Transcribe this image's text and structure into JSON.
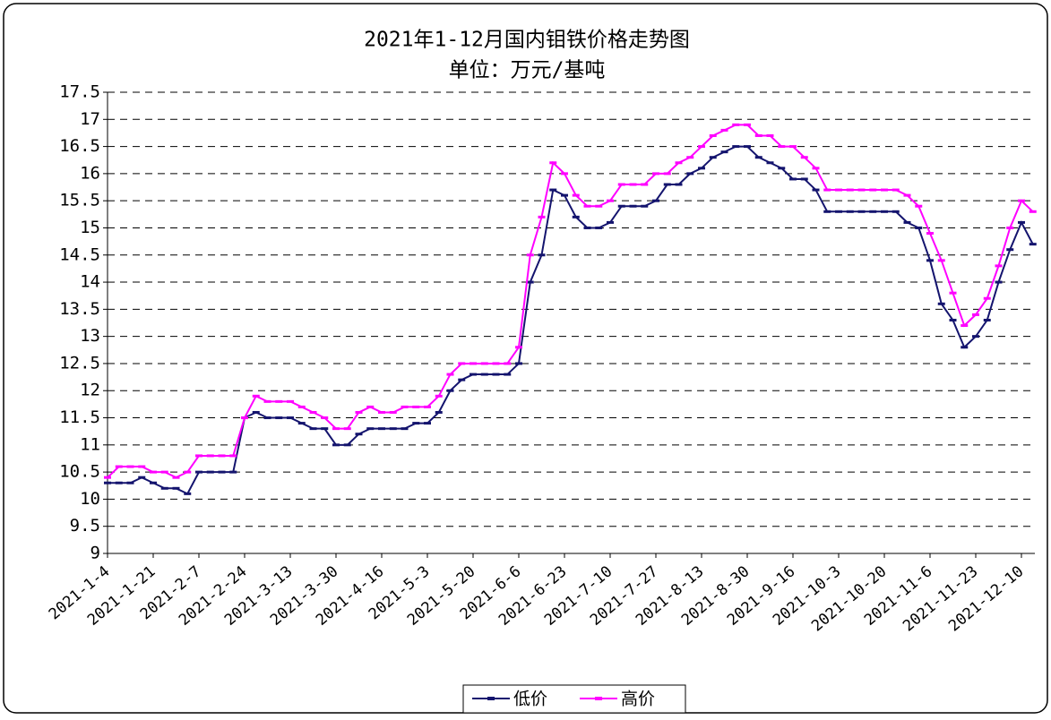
{
  "chart_data": {
    "type": "line",
    "title": "2021年1-12月国内钼铁价格走势图",
    "subtitle": "单位：万元/基吨",
    "categories": [
      "2021-1-4",
      null,
      null,
      null,
      "2021-1-21",
      null,
      null,
      null,
      "2021-2-7",
      null,
      null,
      null,
      "2021-2-24",
      null,
      null,
      null,
      "2021-3-13",
      null,
      null,
      null,
      "2021-3-30",
      null,
      null,
      null,
      "2021-4-16",
      null,
      null,
      null,
      "2021-5-3",
      null,
      null,
      null,
      "2021-5-20",
      null,
      null,
      null,
      "2021-6-6",
      null,
      null,
      null,
      "2021-6-23",
      null,
      null,
      null,
      "2021-7-10",
      null,
      null,
      null,
      "2021-7-27",
      null,
      null,
      null,
      "2021-8-13",
      null,
      null,
      null,
      "2021-8-30",
      null,
      null,
      null,
      "2021-9-16",
      null,
      null,
      null,
      "2021-10-3",
      null,
      null,
      null,
      "2021-10-20",
      null,
      null,
      null,
      "2021-11-6",
      null,
      null,
      null,
      "2021-11-23",
      null,
      null,
      null,
      "2021-12-10",
      null
    ],
    "series": [
      {
        "name": "低价",
        "color": "#14146e",
        "values": [
          10.3,
          10.3,
          10.3,
          10.4,
          10.3,
          10.2,
          10.2,
          10.1,
          10.5,
          10.5,
          10.5,
          10.5,
          11.5,
          11.6,
          11.5,
          11.5,
          11.5,
          11.4,
          11.3,
          11.3,
          11.0,
          11.0,
          11.2,
          11.3,
          11.3,
          11.3,
          11.3,
          11.4,
          11.4,
          11.6,
          12.0,
          12.2,
          12.3,
          12.3,
          12.3,
          12.3,
          12.5,
          14.0,
          14.5,
          15.7,
          15.6,
          15.2,
          15.0,
          15.0,
          15.1,
          15.4,
          15.4,
          15.4,
          15.5,
          15.8,
          15.8,
          16.0,
          16.1,
          16.3,
          16.4,
          16.5,
          16.5,
          16.3,
          16.2,
          16.1,
          15.9,
          15.9,
          15.7,
          15.3,
          15.3,
          15.3,
          15.3,
          15.3,
          15.3,
          15.3,
          15.1,
          15.0,
          14.4,
          13.6,
          13.3,
          12.8,
          13.0,
          13.3,
          14.0,
          14.6,
          15.1,
          14.7
        ]
      },
      {
        "name": "高价",
        "color": "#ff00ff",
        "values": [
          10.4,
          10.6,
          10.6,
          10.6,
          10.5,
          10.5,
          10.4,
          10.5,
          10.8,
          10.8,
          10.8,
          10.8,
          11.5,
          11.9,
          11.8,
          11.8,
          11.8,
          11.7,
          11.6,
          11.5,
          11.3,
          11.3,
          11.6,
          11.7,
          11.6,
          11.6,
          11.7,
          11.7,
          11.7,
          11.9,
          12.3,
          12.5,
          12.5,
          12.5,
          12.5,
          12.5,
          12.8,
          14.5,
          15.2,
          16.2,
          16.0,
          15.6,
          15.4,
          15.4,
          15.5,
          15.8,
          15.8,
          15.8,
          16.0,
          16.0,
          16.2,
          16.3,
          16.5,
          16.7,
          16.8,
          16.9,
          16.9,
          16.7,
          16.7,
          16.5,
          16.5,
          16.3,
          16.1,
          15.7,
          15.7,
          15.7,
          15.7,
          15.7,
          15.7,
          15.7,
          15.6,
          15.4,
          14.9,
          14.4,
          13.8,
          13.2,
          13.4,
          13.7,
          14.3,
          15.0,
          15.5,
          15.3
        ]
      }
    ],
    "ylim": [
      9,
      17.5
    ],
    "yticks": [
      9,
      9.5,
      10,
      10.5,
      11,
      11.5,
      12,
      12.5,
      13,
      13.5,
      14,
      14.5,
      15,
      15.5,
      16,
      16.5,
      17,
      17.5
    ],
    "grid": true,
    "legend": "bottom"
  }
}
